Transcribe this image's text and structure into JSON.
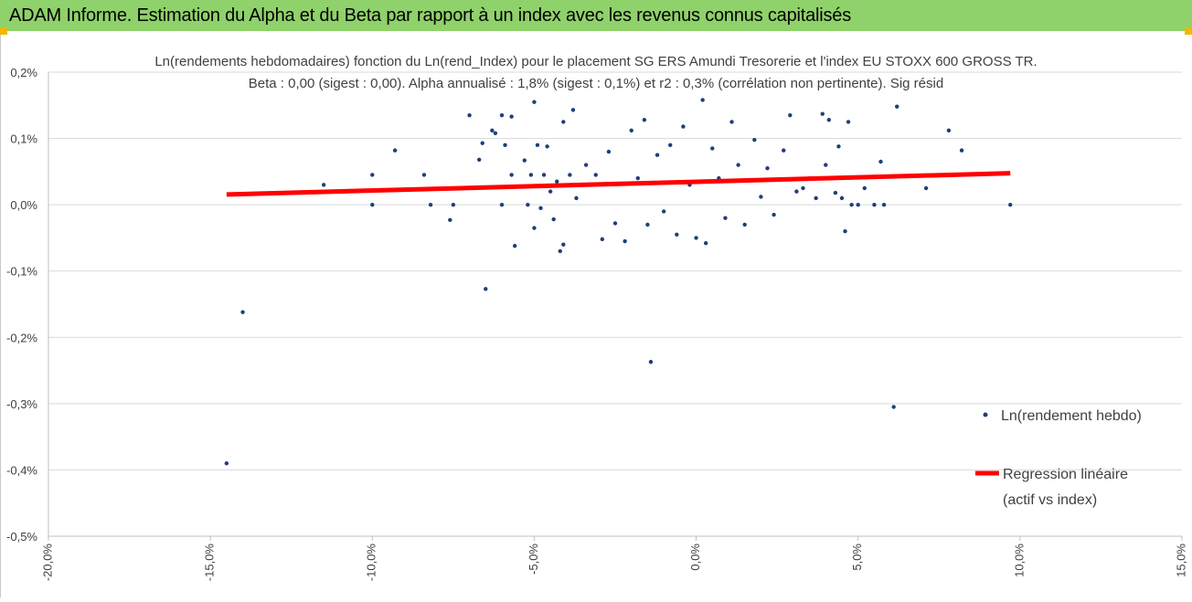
{
  "banner": {
    "title": "ADAM Informe. Estimation du Alpha et du Beta par rapport à un index avec les revenus connus capitalisés",
    "background": "#8fd16a"
  },
  "chart_data": {
    "type": "scatter",
    "title": "Ln(rendements hebdomadaires) fonction du Ln(rend_Index) pour le placement SG ERS Amundi Tresorerie  et l'index EU STOXX 600 GROSS TR.",
    "subtitle": "Beta : 0,00 (sigest : 0,00). Alpha annualisé : 1,8% (sigest : 0,1%) et r2 : 0,3% (corrélation non pertinente). Sig résid",
    "xlabel": "",
    "ylabel": "",
    "xlim": [
      -0.2,
      0.15
    ],
    "ylim": [
      -0.005,
      0.002
    ],
    "x_ticks": [
      -0.2,
      -0.15,
      -0.1,
      -0.05,
      0.0,
      0.05,
      0.1,
      0.15
    ],
    "x_tick_labels": [
      "-20,0%",
      "-15,0%",
      "-10,0%",
      "-5,0%",
      "0,0%",
      "5,0%",
      "10,0%",
      "15,0%"
    ],
    "y_ticks": [
      0.002,
      0.001,
      0.0,
      -0.001,
      -0.002,
      -0.003,
      -0.004,
      -0.005
    ],
    "y_tick_labels": [
      "0,2%",
      "0,1%",
      "0,0%",
      "-0,1%",
      "-0,2%",
      "-0,3%",
      "-0,4%",
      "-0,5%"
    ],
    "grid": "horizontal",
    "legend_position": "right",
    "series": [
      {
        "name": "Ln(rendement hebdo)",
        "kind": "points",
        "color": "#1f3f7a",
        "points": [
          [
            -0.145,
            -0.0039
          ],
          [
            -0.14,
            -0.00162
          ],
          [
            -0.115,
            0.0003
          ],
          [
            -0.1,
            0.00045
          ],
          [
            -0.1,
            0.0
          ],
          [
            -0.093,
            0.00082
          ],
          [
            -0.084,
            0.00045
          ],
          [
            -0.084,
            0.00023
          ],
          [
            -0.082,
            0.0
          ],
          [
            -0.076,
            -0.00023
          ],
          [
            -0.075,
            0.0
          ],
          [
            -0.07,
            0.00135
          ],
          [
            -0.067,
            0.00068
          ],
          [
            -0.066,
            0.00093
          ],
          [
            -0.065,
            -0.00127
          ],
          [
            -0.063,
            0.00112
          ],
          [
            -0.062,
            0.00108
          ],
          [
            -0.06,
            0.0
          ],
          [
            -0.06,
            0.00135
          ],
          [
            -0.059,
            0.0009
          ],
          [
            -0.057,
            0.00133
          ],
          [
            -0.057,
            0.00045
          ],
          [
            -0.056,
            -0.00062
          ],
          [
            -0.053,
            0.00067
          ],
          [
            -0.052,
            0.0
          ],
          [
            -0.051,
            0.00045
          ],
          [
            -0.05,
            -0.00035
          ],
          [
            -0.05,
            0.00155
          ],
          [
            -0.049,
            0.0009
          ],
          [
            -0.048,
            -5e-05
          ],
          [
            -0.047,
            0.00045
          ],
          [
            -0.046,
            0.00088
          ],
          [
            -0.045,
            0.0002
          ],
          [
            -0.044,
            -0.00022
          ],
          [
            -0.043,
            0.00035
          ],
          [
            -0.042,
            -0.0007
          ],
          [
            -0.041,
            0.00125
          ],
          [
            -0.041,
            -0.0006
          ],
          [
            -0.039,
            0.00045
          ],
          [
            -0.038,
            0.00143
          ],
          [
            -0.037,
            0.0001
          ],
          [
            -0.034,
            0.0006
          ],
          [
            -0.031,
            0.00045
          ],
          [
            -0.029,
            -0.00052
          ],
          [
            -0.027,
            0.0008
          ],
          [
            -0.025,
            -0.00028
          ],
          [
            -0.022,
            -0.00055
          ],
          [
            -0.02,
            0.00112
          ],
          [
            -0.018,
            0.0004
          ],
          [
            -0.016,
            0.00128
          ],
          [
            -0.015,
            -0.0003
          ],
          [
            -0.014,
            -0.00237
          ],
          [
            -0.012,
            0.00075
          ],
          [
            -0.01,
            -0.0001
          ],
          [
            -0.008,
            0.0009
          ],
          [
            -0.006,
            -0.00045
          ],
          [
            -0.004,
            0.00118
          ],
          [
            -0.002,
            0.0003
          ],
          [
            0.0,
            -0.0005
          ],
          [
            0.002,
            0.00158
          ],
          [
            0.003,
            -0.00058
          ],
          [
            0.005,
            0.00085
          ],
          [
            0.007,
            0.0004
          ],
          [
            0.009,
            -0.0002
          ],
          [
            0.011,
            0.00125
          ],
          [
            0.013,
            0.0006
          ],
          [
            0.015,
            -0.0003
          ],
          [
            0.018,
            0.00098
          ],
          [
            0.02,
            0.00012
          ],
          [
            0.022,
            0.00055
          ],
          [
            0.024,
            -0.00015
          ],
          [
            0.027,
            0.00082
          ],
          [
            0.029,
            0.00135
          ],
          [
            0.031,
            0.0002
          ],
          [
            0.033,
            0.00025
          ],
          [
            0.035,
            0.0004
          ],
          [
            0.037,
            0.0001
          ],
          [
            0.039,
            0.00137
          ],
          [
            0.04,
            0.0006
          ],
          [
            0.041,
            0.00128
          ],
          [
            0.042,
            0.0004
          ],
          [
            0.043,
            0.00018
          ],
          [
            0.044,
            0.00088
          ],
          [
            0.045,
            0.0001
          ],
          [
            0.046,
            -0.0004
          ],
          [
            0.047,
            0.00125
          ],
          [
            0.048,
            0.0
          ],
          [
            0.05,
            0.0
          ],
          [
            0.052,
            0.00025
          ],
          [
            0.055,
            0.0
          ],
          [
            0.057,
            0.00065
          ],
          [
            0.058,
            0.0
          ],
          [
            0.061,
            -0.00305
          ],
          [
            0.062,
            0.00148
          ],
          [
            0.071,
            0.00025
          ],
          [
            0.078,
            0.00112
          ],
          [
            0.082,
            0.00082
          ],
          [
            0.097,
            0.0
          ]
        ]
      },
      {
        "name": "Regression linéaire (actif vs index)",
        "kind": "line",
        "color": "#ff0000",
        "points": [
          [
            -0.145,
            0.000155
          ],
          [
            0.097,
            0.000475
          ]
        ]
      }
    ],
    "legend": [
      {
        "label": "Ln(rendement hebdo)"
      },
      {
        "label_line1": "Regression linéaire",
        "label_line2": "(actif vs index)"
      }
    ]
  }
}
